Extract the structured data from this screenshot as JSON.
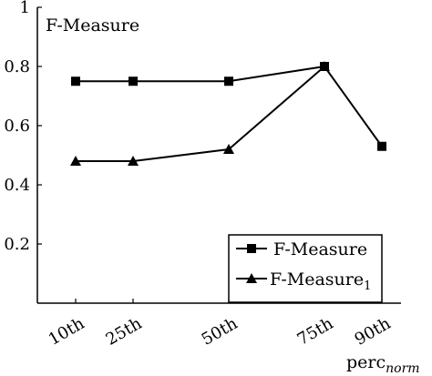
{
  "chart_data": {
    "type": "line",
    "title": "",
    "ylabel": "F-Measure",
    "xlabel": "perc",
    "xlabel_sub": "norm",
    "x": [
      10,
      25,
      50,
      75,
      90
    ],
    "categories": [
      "10th",
      "25th",
      "50th",
      "75th",
      "90th"
    ],
    "xlim": [
      0,
      95
    ],
    "ylim": [
      0,
      1
    ],
    "yticks": [
      0.2,
      0.4,
      0.6,
      0.8,
      1
    ],
    "ytick_labels": [
      "0.2",
      "0.4",
      "0.6",
      "0.8",
      "1"
    ],
    "grid": false,
    "legend_position": "bottom-right",
    "series": [
      {
        "name": "F-Measure",
        "name_sub": "",
        "marker": "square",
        "x": [
          10,
          25,
          50,
          75,
          90
        ],
        "values": [
          0.75,
          0.75,
          0.75,
          0.8,
          0.53
        ]
      },
      {
        "name": "F-Measure",
        "name_sub": "1",
        "marker": "triangle",
        "x": [
          10,
          25,
          50,
          75
        ],
        "values": [
          0.48,
          0.48,
          0.52,
          0.8
        ]
      }
    ]
  }
}
